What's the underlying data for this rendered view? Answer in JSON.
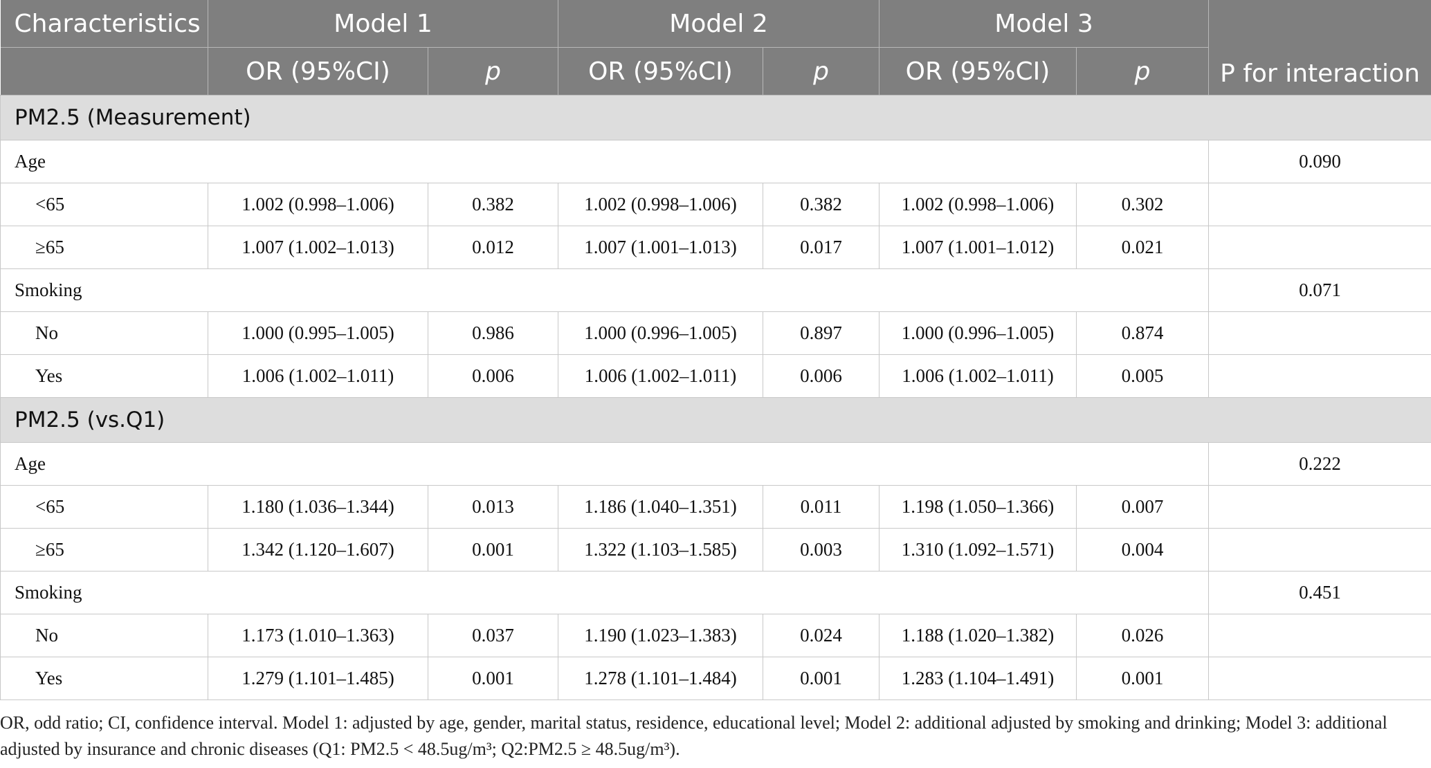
{
  "header": {
    "characteristics": "Characteristics",
    "model1": "Model 1",
    "model2": "Model 2",
    "model3": "Model 3",
    "or_ci": "OR (95%CI)",
    "p": "p",
    "p_interaction": "P for interaction"
  },
  "sections": [
    {
      "title": "PM2.5 (Measurement)",
      "groups": [
        {
          "label": "Age",
          "p_interaction": "0.090",
          "rows": [
            {
              "label": "<65",
              "m1_or": "1.002 (0.998–1.006)",
              "m1_p": "0.382",
              "m2_or": "1.002 (0.998–1.006)",
              "m2_p": "0.382",
              "m3_or": "1.002 (0.998–1.006)",
              "m3_p": "0.302"
            },
            {
              "label": "≥65",
              "m1_or": "1.007 (1.002–1.013)",
              "m1_p": "0.012",
              "m2_or": "1.007 (1.001–1.013)",
              "m2_p": "0.017",
              "m3_or": "1.007 (1.001–1.012)",
              "m3_p": "0.021"
            }
          ]
        },
        {
          "label": "Smoking",
          "p_interaction": "0.071",
          "rows": [
            {
              "label": "No",
              "m1_or": "1.000 (0.995–1.005)",
              "m1_p": "0.986",
              "m2_or": "1.000 (0.996–1.005)",
              "m2_p": "0.897",
              "m3_or": "1.000 (0.996–1.005)",
              "m3_p": "0.874"
            },
            {
              "label": "Yes",
              "m1_or": "1.006 (1.002–1.011)",
              "m1_p": "0.006",
              "m2_or": "1.006 (1.002–1.011)",
              "m2_p": "0.006",
              "m3_or": "1.006 (1.002–1.011)",
              "m3_p": "0.005"
            }
          ]
        }
      ]
    },
    {
      "title": "PM2.5 (vs.Q1)",
      "groups": [
        {
          "label": "Age",
          "p_interaction": "0.222",
          "rows": [
            {
              "label": "<65",
              "m1_or": "1.180 (1.036–1.344)",
              "m1_p": "0.013",
              "m2_or": "1.186 (1.040–1.351)",
              "m2_p": "0.011",
              "m3_or": "1.198 (1.050–1.366)",
              "m3_p": "0.007"
            },
            {
              "label": "≥65",
              "m1_or": "1.342 (1.120–1.607)",
              "m1_p": "0.001",
              "m2_or": "1.322 (1.103–1.585)",
              "m2_p": "0.003",
              "m3_or": "1.310 (1.092–1.571)",
              "m3_p": "0.004"
            }
          ]
        },
        {
          "label": "Smoking",
          "p_interaction": "0.451",
          "rows": [
            {
              "label": "No",
              "m1_or": "1.173 (1.010–1.363)",
              "m1_p": "0.037",
              "m2_or": "1.190 (1.023–1.383)",
              "m2_p": "0.024",
              "m3_or": "1.188 (1.020–1.382)",
              "m3_p": "0.026"
            },
            {
              "label": "Yes",
              "m1_or": "1.279 (1.101–1.485)",
              "m1_p": "0.001",
              "m2_or": "1.278 (1.101–1.484)",
              "m2_p": "0.001",
              "m3_or": "1.283 (1.104–1.491)",
              "m3_p": "0.001"
            }
          ]
        }
      ]
    }
  ],
  "footnote": {
    "text": "OR, odd ratio; CI, confidence interval. Model 1: adjusted by age, gender, marital status, residence, educational level; Model 2: additional adjusted by smoking and drinking; Model 3: additional adjusted by insurance and chronic diseases (Q1: PM2.5 < 48.5ug/m³; Q2:PM2.5 ≥ 48.5ug/m³)."
  }
}
